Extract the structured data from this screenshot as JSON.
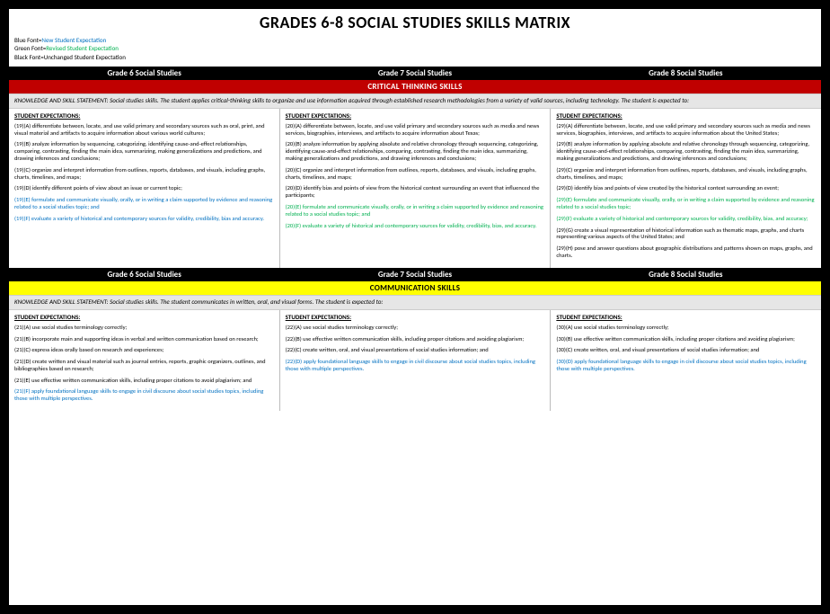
{
  "title": "GRADES 6-8 SOCIAL STUDIES SKILLS MATRIX",
  "legend": {
    "l1_lbl": "Blue Font=",
    "l1_val": "New Student Expectation",
    "l2_lbl": "Green Font=",
    "l2_val": "Revised Student Expectation",
    "l3_lbl": "Black Font=",
    "l3_val": "Unchanged Student Expectation"
  },
  "hdr": {
    "g6": "Grade 6 Social Studies",
    "g7": "Grade 7 Social Studies",
    "g8": "Grade 8 Social Studies"
  },
  "section1": {
    "band": "CRITICAL THINKING SKILLS",
    "stmt": "KNOWLEDGE AND SKILL STATEMENT: Social studies skills. The student applies critical-thinking skills to organize and use information acquired through established research methodologies from a variety of valid sources, including technology. The student is expected to:"
  },
  "se_head": "STUDENT EXPECTATIONS:",
  "ct": {
    "g6": {
      "a": "(19)(A) differentiate between, locate, and use valid primary and secondary sources such as oral, print, and visual material and artifacts to acquire information about various world cultures;",
      "b": "(19)(B) analyze information by sequencing, categorizing, identifying cause-and-effect relationships, comparing, contrasting, finding the main idea, summarizing, making generalizations and predictions, and drawing inferences and conclusions;",
      "c": "(19)(C) organize and interpret information from outlines, reports, databases, and visuals, including graphs, charts, timelines, and maps;",
      "d": "(19)(D) identify different points of view about an issue or current topic;",
      "e": "(19)(E) formulate and communicate visually, orally, or in writing a claim supported by evidence and reasoning related to a social studies topic; and",
      "f": "(19)(F) evaluate a variety of historical and contemporary sources for validity, credibility, bias and accuracy."
    },
    "g7": {
      "a": "(20)(A) differentiate between, locate, and use valid primary and secondary sources such as media and news services, biographies, interviews, and artifacts to acquire information about Texas;",
      "b": "(20)(B) analyze information by applying absolute and relative chronology through sequencing, categorizing, identifying cause-and-effect relationships, comparing, contrasting, finding the main idea, summarizing, making generalizations and predictions, and drawing inferences and conclusions;",
      "c": "(20)(C) organize and interpret information from outlines, reports, databases, and visuals, including graphs, charts, timelines, and maps;",
      "d": "(20)(D) identify bias and points of view from the historical context surrounding an event that influenced the participants;",
      "e": "(20)(E) formulate and communicate visually, orally, or in writing a claim supported by evidence and reasoning related to a social studies topic; and",
      "f": "(20)(F) evaluate a variety of historical and contemporary sources for validity, credibility, bias, and accuracy."
    },
    "g8": {
      "a": "(29)(A) differentiate between, locate, and use valid primary and secondary sources such as media and news services, biographies, interviews, and artifacts to acquire information about the United States;",
      "b": "(29)(B) analyze information by applying absolute and relative chronology through sequencing, categorizing, identifying cause-and-effect relationships, comparing, contrasting, finding the main idea, summarizing, making generalizations and predictions, and drawing inferences and conclusions;",
      "c": "(29)(C) organize and interpret information from outlines, reports, databases, and visuals, including graphs, charts, timelines, and maps;",
      "d": "(29)(D) identify bias and points of view created by the historical context surrounding an event;",
      "e": "(29)(E) formulate and communicate visually, orally, or in writing a claim supported by evidence and reasoning related to a social studies topic;",
      "f": "(29)(F) evaluate a variety of historical and contemporary sources for validity, credibility, bias, and accuracy;",
      "g": "(29)(G) create a visual representation of historical information such as thematic maps, graphs, and charts representing various aspects of the United States; and",
      "h": "(29)(H) pose and answer questions about geographic distributions and patterns shown on maps, graphs, and charts."
    }
  },
  "section2": {
    "band": "COMMUNICATION SKILLS",
    "stmt": "KNOWLEDGE AND SKILL STATEMENT: Social studies skills. The student communicates in written, oral, and visual forms. The student is expected to:"
  },
  "cm": {
    "g6": {
      "a": "(21)(A) use social studies terminology correctly;",
      "b": "(21)(B) incorporate main and supporting ideas in verbal and written communication based on research;",
      "c": "(21)(C) express ideas orally based on research and experiences;",
      "d": "(21)(D) create written and visual material such as journal entries, reports, graphic organizers, outlines, and bibliographies based on research;",
      "e": "(21)(E) use effective written communication skills, including proper citations to avoid plagiarism; and",
      "f": "(21)(F) apply foundational language skills to engage in civil discourse about social studies topics, including those with multiple perspectives."
    },
    "g7": {
      "a": "(22)(A) use social studies terminology correctly;",
      "b": "(22)(B) use effective written communication skills, including proper citations and avoiding plagiarism;",
      "c": "(22)(C) create written, oral, and visual presentations of social studies information; and",
      "d": "(22)(D) apply foundational language skills to engage in civil discourse about social studies topics, including those with multiple perspectives."
    },
    "g8": {
      "a": "(30)(A) use social studies terminology correctly;",
      "b": "(30)(B) use effective written communication skills, including proper citations and avoiding plagiarism;",
      "c": "(30)(C) create written, oral, and visual presentations of social studies information; and",
      "d": "(30)(D) apply foundational language skills to engage in civil discourse about social studies topics, including those with multiple perspectives."
    }
  },
  "colors": {
    "blue": "#0070c0",
    "green": "#00b050",
    "red": "#c00000",
    "yellow": "#ffff00"
  }
}
